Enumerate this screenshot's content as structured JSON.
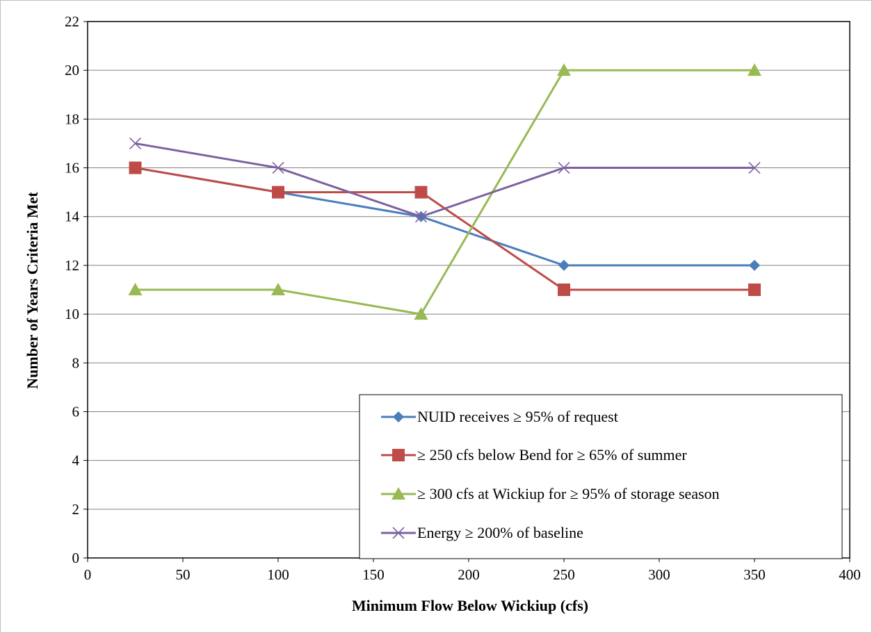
{
  "chart_data": {
    "type": "line",
    "xlabel": "Minimum Flow Below Wickiup (cfs)",
    "ylabel": "Number of Years Criteria Met",
    "xlim": [
      0,
      400
    ],
    "ylim": [
      0,
      22
    ],
    "xticks": [
      0,
      50,
      100,
      150,
      200,
      250,
      300,
      350,
      400
    ],
    "yticks": [
      0,
      2,
      4,
      6,
      8,
      10,
      12,
      14,
      16,
      18,
      20,
      22
    ],
    "grid": "horizontal",
    "legend_position": "bottom-right",
    "x": [
      25,
      100,
      175,
      250,
      350
    ],
    "series": [
      {
        "name": "NUID receives ≥ 95% of request",
        "values": [
          16,
          15,
          14,
          12,
          12
        ],
        "color": "#4a7ebb",
        "marker": "diamond"
      },
      {
        "name": "≥ 250 cfs below Bend for ≥ 65% of summer",
        "values": [
          16,
          15,
          15,
          11,
          11
        ],
        "color": "#be4b48",
        "marker": "square"
      },
      {
        "name": "≥ 300 cfs at Wickiup for ≥ 95% of storage season",
        "values": [
          11,
          11,
          10,
          20,
          20
        ],
        "color": "#98b954",
        "marker": "triangle"
      },
      {
        "name": "Energy ≥ 200% of baseline",
        "values": [
          17,
          16,
          14,
          16,
          16
        ],
        "color": "#7d60a0",
        "marker": "x"
      }
    ]
  }
}
